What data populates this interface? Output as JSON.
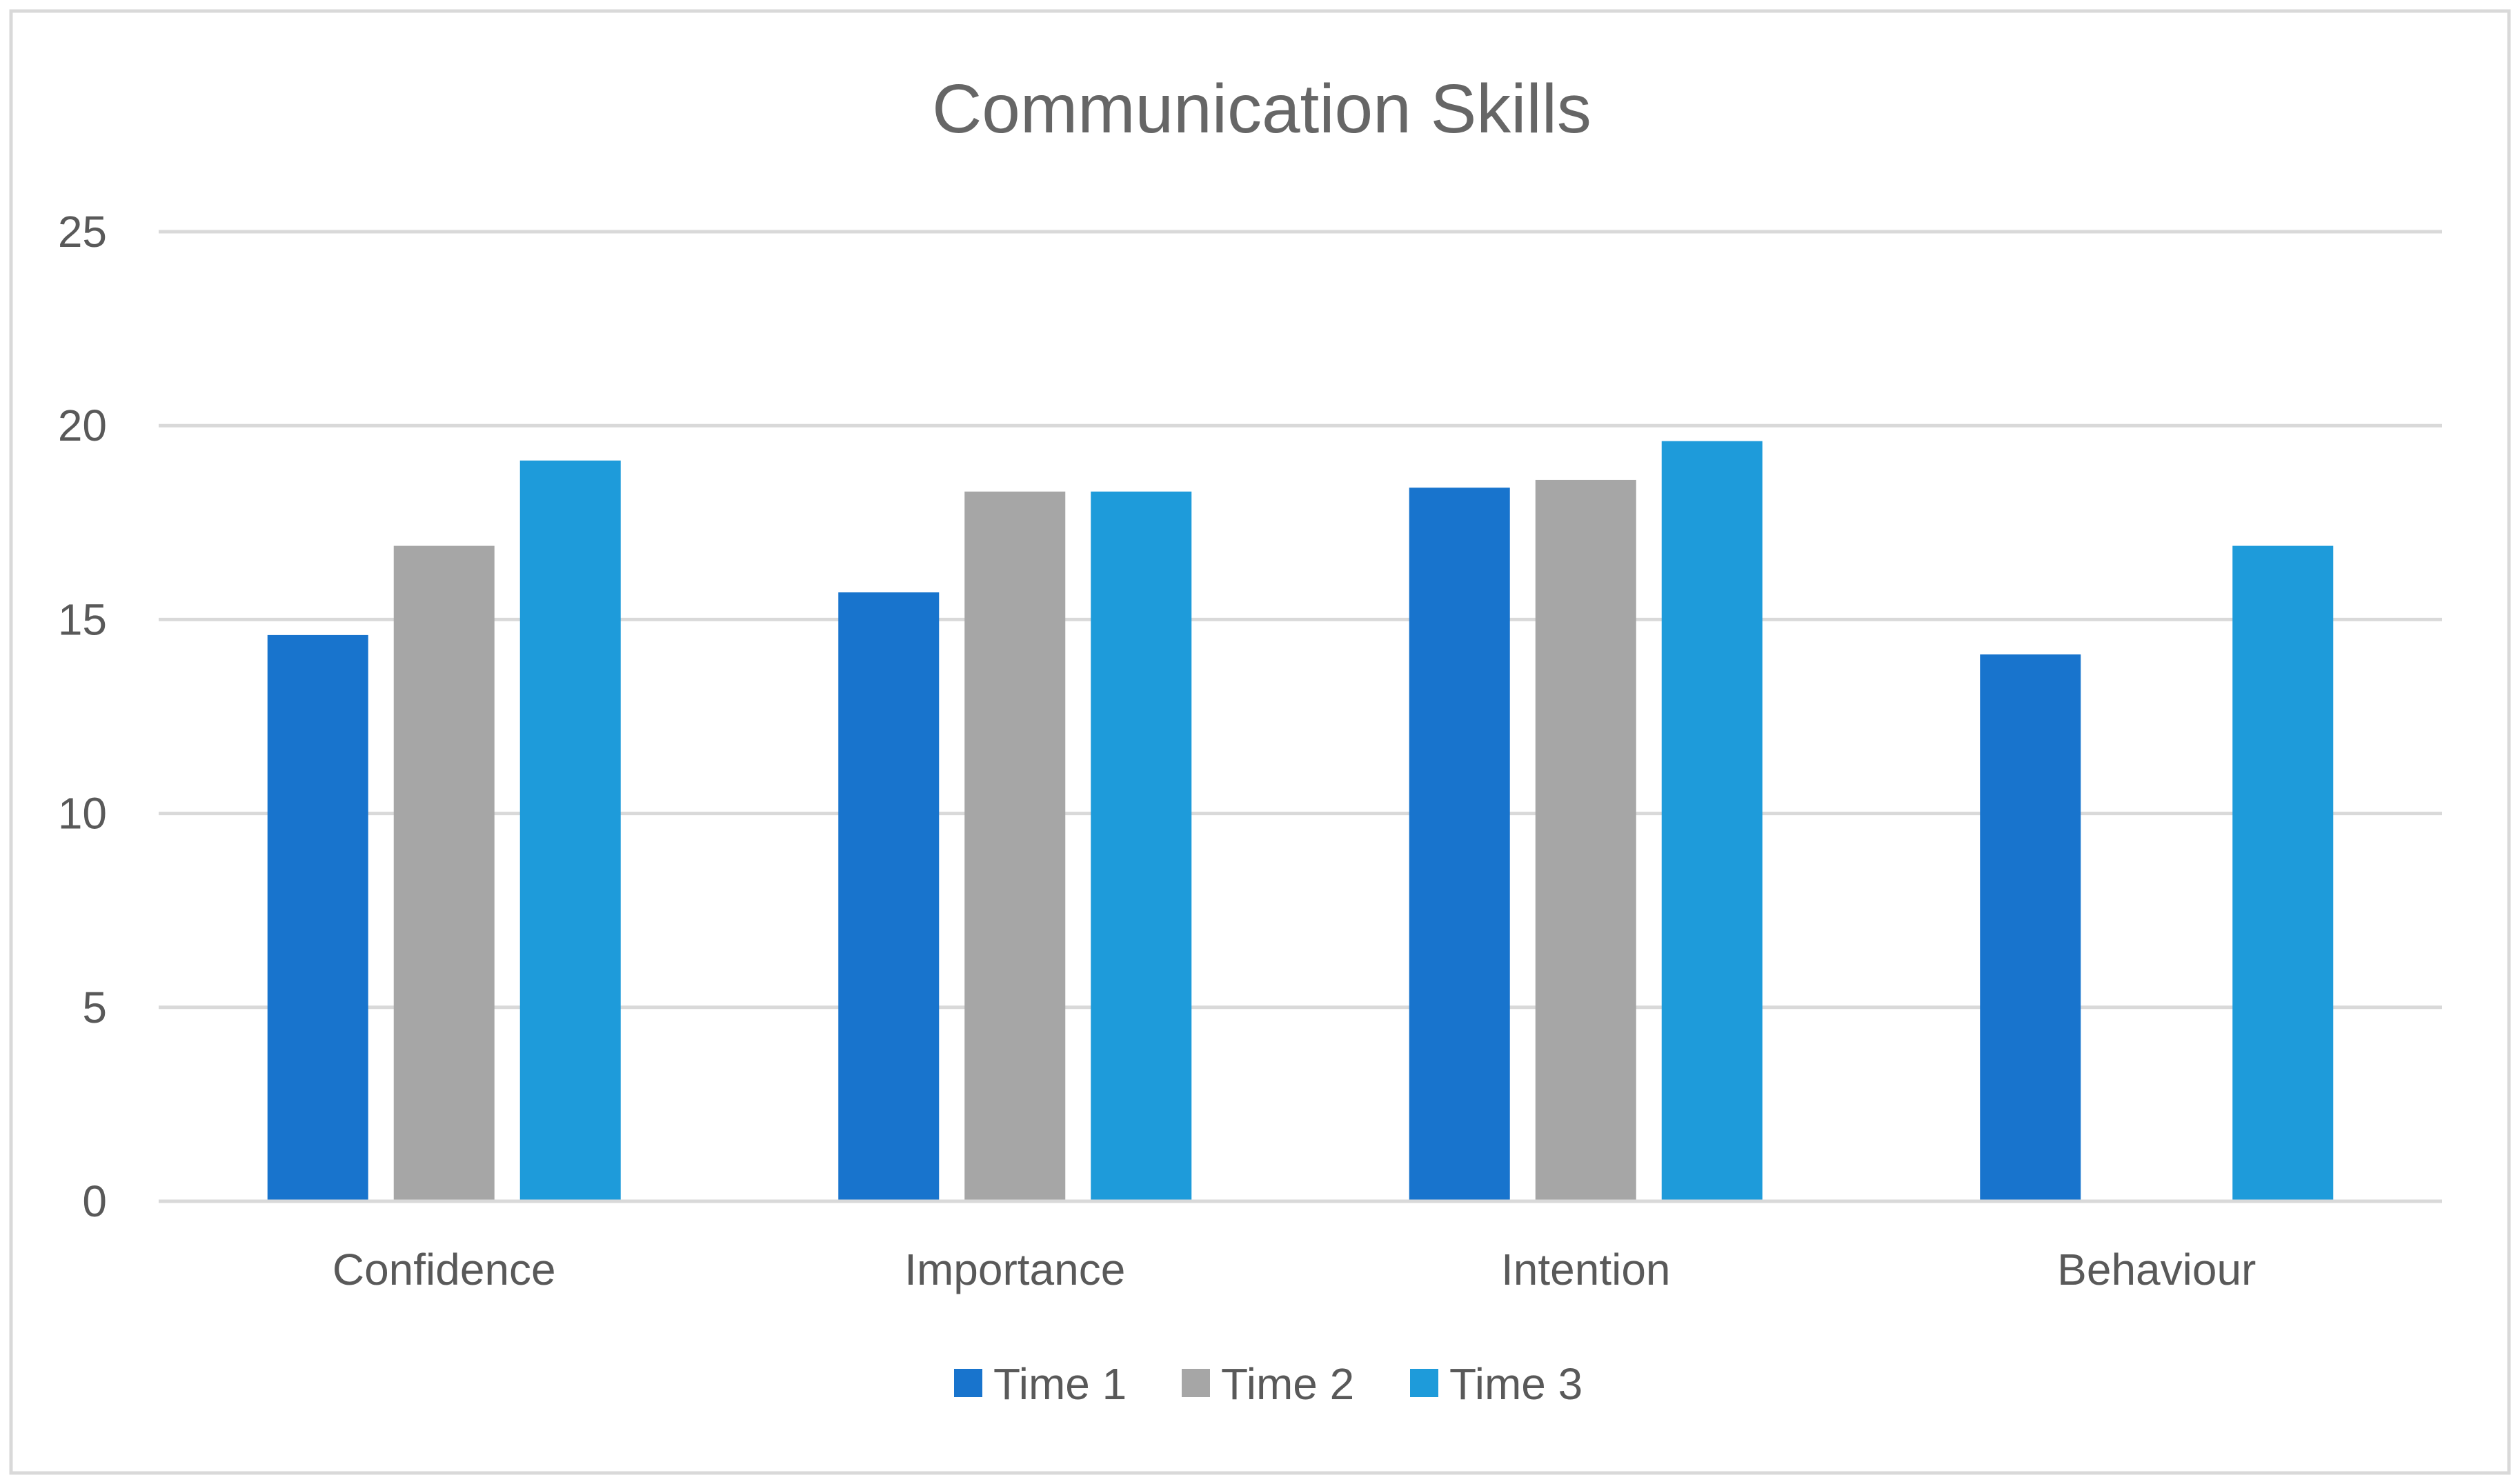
{
  "chart_data": {
    "type": "bar",
    "title": "Communication Skills",
    "xlabel": "",
    "ylabel": "",
    "categories": [
      "Confidence",
      "Importance",
      "Intention",
      "Behaviour"
    ],
    "series": [
      {
        "name": "Time 1",
        "values": [
          14.6,
          15.7,
          18.4,
          14.1
        ],
        "color": "#1874CD"
      },
      {
        "name": "Time 2",
        "values": [
          16.9,
          18.3,
          18.6,
          null
        ],
        "color": "#A6A6A6"
      },
      {
        "name": "Time 3",
        "values": [
          19.1,
          18.3,
          19.6,
          16.9
        ],
        "color": "#1E9BDA"
      }
    ],
    "ylim": [
      0,
      25
    ],
    "yticks": [
      "0",
      "5",
      "10",
      "15",
      "20",
      "25"
    ],
    "grid": true,
    "legend_position": "bottom"
  },
  "colors": {
    "frame": "#D9D9D9",
    "grid": "#D9D9D9",
    "text": "#595959",
    "title": "#666666"
  }
}
